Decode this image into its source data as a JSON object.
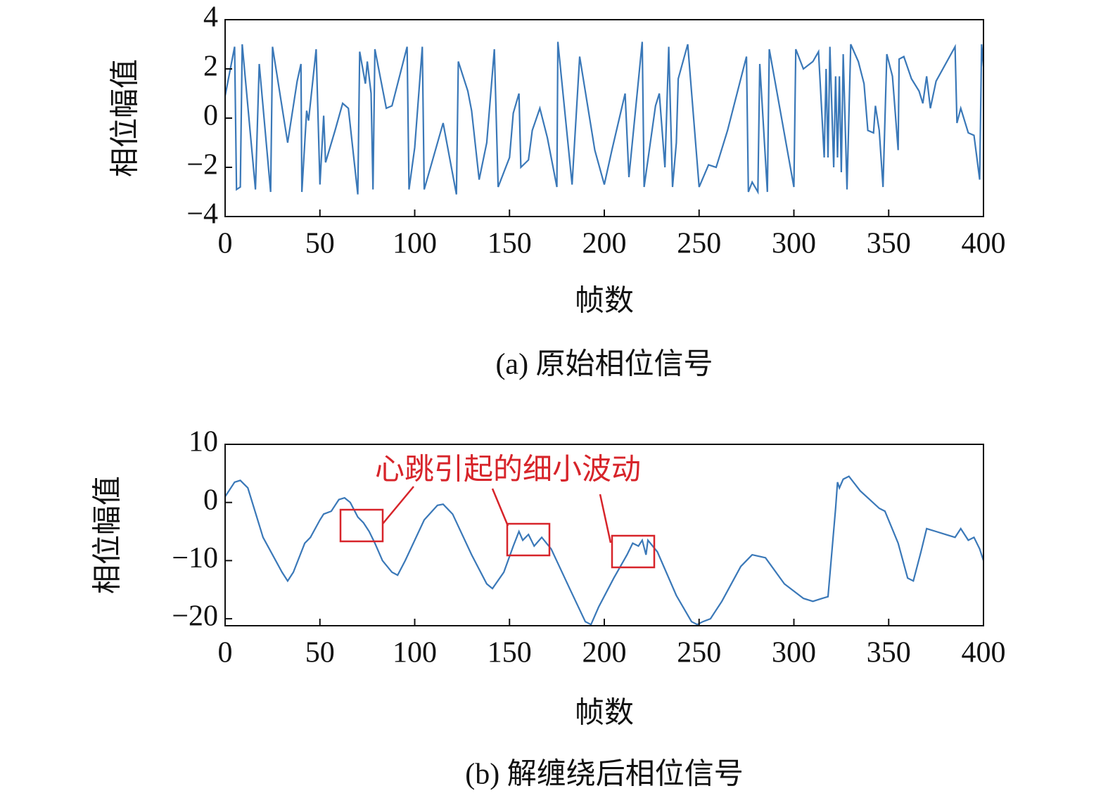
{
  "chart_data": [
    {
      "type": "line",
      "caption": "(a) 原始相位信号",
      "xlabel": "帧数",
      "ylabel": "相位幅值",
      "color": "#3a78b8",
      "xlim": [
        0,
        400
      ],
      "xticks": [
        0,
        50,
        100,
        150,
        200,
        250,
        300,
        350,
        400
      ],
      "ylim": [
        -4,
        4
      ],
      "yticks": [
        {
          "value": -4,
          "label": "−4"
        },
        {
          "value": -2,
          "label": "−2"
        },
        0,
        2,
        4
      ],
      "x": [
        0,
        2,
        5,
        6,
        8,
        9,
        16,
        18,
        24,
        25,
        33,
        38,
        40,
        40.5,
        43,
        44,
        48,
        50,
        52,
        53,
        58,
        62,
        65,
        70,
        71,
        74,
        75,
        77,
        78,
        79,
        85,
        88,
        96,
        97,
        100,
        104,
        105,
        115,
        122,
        123,
        128,
        130,
        134,
        138,
        142,
        144,
        150,
        152,
        155,
        156,
        160,
        162,
        166,
        170,
        175,
        175.5,
        183,
        187,
        195,
        200,
        204,
        211,
        213,
        220,
        221,
        227,
        229,
        232,
        234,
        236,
        238,
        239,
        244,
        250,
        255,
        259,
        265,
        275,
        276,
        278,
        281,
        282,
        286,
        287,
        300,
        301,
        305,
        310,
        313,
        316,
        317,
        318,
        319,
        321,
        322,
        323,
        324,
        325,
        326,
        328,
        330,
        334,
        337,
        339,
        342,
        343,
        345,
        347,
        349,
        352,
        355,
        355.5,
        358,
        362,
        366,
        368,
        370,
        372,
        375,
        385,
        386,
        388,
        392,
        395,
        398,
        399,
        400
      ],
      "values": [
        0.9,
        1.7,
        2.9,
        -2.9,
        -2.8,
        3.0,
        -2.9,
        2.2,
        -3.0,
        2.9,
        -1.0,
        1.5,
        2.2,
        -3.0,
        0.3,
        -0.1,
        2.8,
        -2.7,
        0.1,
        -1.8,
        -0.5,
        0.6,
        0.4,
        -3.1,
        2.7,
        1.4,
        2.3,
        1.0,
        -2.9,
        2.8,
        0.4,
        0.5,
        2.9,
        -2.9,
        -1.2,
        2.9,
        -2.9,
        -0.2,
        -3.1,
        2.3,
        1.1,
        0.3,
        -2.5,
        -1.0,
        2.8,
        -2.8,
        -1.6,
        0.2,
        1.0,
        -2.0,
        -1.7,
        -0.5,
        0.4,
        -0.8,
        -2.8,
        3.1,
        -2.7,
        2.5,
        -1.3,
        -2.7,
        -1.3,
        1.0,
        -2.4,
        3.1,
        -2.8,
        0.5,
        1.0,
        -2.0,
        2.9,
        -2.8,
        -1.0,
        1.6,
        3.0,
        -2.8,
        -1.9,
        -2.0,
        -0.5,
        2.5,
        -3.0,
        -2.6,
        -3.0,
        2.2,
        -3.0,
        2.8,
        -2.8,
        2.8,
        2.0,
        2.3,
        2.7,
        -1.6,
        2.0,
        -1.6,
        2.9,
        -2.0,
        1.7,
        -1.6,
        1.7,
        -2.2,
        2.6,
        -2.9,
        3.0,
        2.3,
        1.4,
        -0.5,
        -0.6,
        0.5,
        -0.5,
        -2.8,
        2.6,
        1.7,
        -1.3,
        2.4,
        2.5,
        1.6,
        1.1,
        0.6,
        1.7,
        0.4,
        1.5,
        2.9,
        -0.2,
        0.4,
        -0.6,
        -0.7,
        -2.5,
        3.0,
        2.1
      ]
    },
    {
      "type": "line",
      "caption": "(b) 解缠绕后相位信号",
      "xlabel": "帧数",
      "ylabel": "相位幅值",
      "color": "#3a78b8",
      "annotation": "心跳引起的细小波动",
      "xlim": [
        0,
        400
      ],
      "xticks": [
        0,
        50,
        100,
        150,
        200,
        250,
        300,
        350,
        400
      ],
      "ylim": [
        -21.2,
        10
      ],
      "yticks": [
        {
          "value": -20,
          "label": "−20"
        },
        {
          "value": -10,
          "label": "−10"
        },
        0,
        10
      ],
      "x": [
        0,
        5,
        8,
        12,
        20,
        30,
        33,
        36,
        42,
        45,
        50,
        52,
        56,
        58,
        60,
        63,
        66,
        70,
        73,
        76,
        79,
        83,
        88,
        91,
        95,
        105,
        112,
        115,
        120,
        130,
        138,
        141,
        147,
        152,
        155,
        157,
        160,
        163,
        167,
        172,
        182,
        190,
        193,
        197,
        205,
        212,
        215,
        218,
        220,
        222,
        223,
        228,
        238,
        246,
        249,
        252,
        256,
        262,
        272,
        278,
        285,
        295,
        305,
        310,
        315,
        318,
        322,
        323,
        324,
        326,
        329,
        335,
        340,
        345,
        348,
        355,
        360,
        363,
        367,
        370,
        375,
        380,
        385,
        388,
        392,
        395,
        398,
        400
      ],
      "values": [
        1,
        3.5,
        3.8,
        2.5,
        -6,
        -12,
        -13.5,
        -12,
        -7,
        -6,
        -3,
        -2,
        -1.5,
        -0.5,
        0.5,
        0.8,
        0,
        -2.5,
        -3.5,
        -5,
        -7,
        -10,
        -12,
        -12.5,
        -10,
        -3,
        -0.5,
        -0.3,
        -2,
        -9,
        -14,
        -14.8,
        -12,
        -7.5,
        -5,
        -6.5,
        -5.5,
        -7.5,
        -6,
        -8,
        -15,
        -20.5,
        -21,
        -18,
        -13,
        -9,
        -7,
        -7.5,
        -6.5,
        -9,
        -6.5,
        -8.5,
        -16,
        -20.5,
        -21,
        -20.5,
        -20,
        -17,
        -11,
        -9,
        -9.5,
        -14,
        -16.5,
        -17,
        -16.5,
        -16.2,
        -1,
        3.5,
        2.5,
        4,
        4.5,
        2,
        0.5,
        -1,
        -1.5,
        -7,
        -13,
        -13.5,
        -8.5,
        -4.5,
        -5,
        -5.5,
        -6,
        -4.5,
        -6.5,
        -6,
        -8,
        -10
      ]
    }
  ]
}
